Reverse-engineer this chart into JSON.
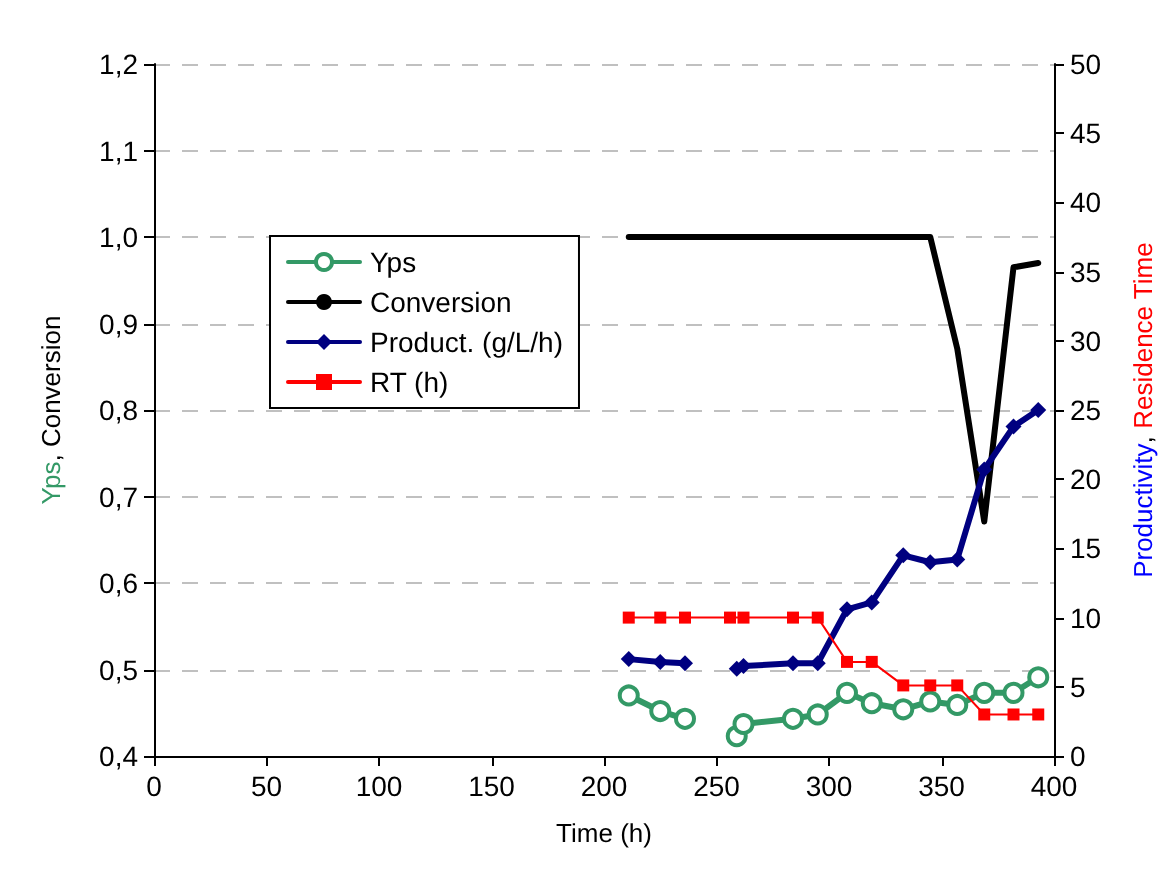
{
  "chart_data": {
    "type": "line",
    "xlabel": "Time (h)",
    "ylabel": "Yps, Conversion",
    "y2label": "Productivity, Residence Time",
    "xlim": [
      0,
      400
    ],
    "xticks": [
      0,
      50,
      100,
      150,
      200,
      250,
      300,
      350,
      400
    ],
    "ylim": [
      0.4,
      1.2
    ],
    "yticks": [
      {
        "value": 0.4,
        "label": "0,4"
      },
      {
        "value": 0.5,
        "label": "0,5"
      },
      {
        "value": 0.6,
        "label": "0,6"
      },
      {
        "value": 0.7,
        "label": "0,7"
      },
      {
        "value": 0.8,
        "label": "0,8"
      },
      {
        "value": 0.9,
        "label": "0,9"
      },
      {
        "value": 1.0,
        "label": "1,0"
      },
      {
        "value": 1.1,
        "label": "1,1"
      },
      {
        "value": 1.2,
        "label": "1,2"
      }
    ],
    "y2lim": [
      0,
      50
    ],
    "y2ticks": [
      0,
      5,
      10,
      15,
      20,
      25,
      30,
      35,
      40,
      45,
      50
    ],
    "grid": "y",
    "legend": "top left",
    "series": [
      {
        "name": "Yps",
        "color": "#339966",
        "marker": "circle",
        "x": [
          211,
          225,
          236,
          247,
          259,
          262,
          284,
          295,
          308,
          319,
          333,
          345,
          357,
          369,
          382,
          393
        ],
        "values": [
          0.47,
          0.452,
          0.443,
          null,
          0.423,
          0.437,
          0.443,
          0.448,
          0.473,
          0.461,
          0.454,
          0.463,
          0.459,
          0.473,
          0.473,
          0.491
        ]
      },
      {
        "name": "Conversion",
        "color": "#000000",
        "marker": "none",
        "x": [
          211,
          225,
          236,
          259,
          262,
          284,
          295,
          308,
          319,
          333,
          345,
          357,
          369,
          382,
          393
        ],
        "values": [
          1.0,
          1.0,
          1.0,
          1.0,
          1.0,
          1.0,
          1.0,
          1.0,
          1.0,
          1.0,
          1.0,
          0.871,
          0.671,
          0.965,
          0.97
        ]
      },
      {
        "name": "Product. (g/L/h)",
        "color": "#000080",
        "marker": "diamond",
        "axis": "y2",
        "x": [
          211,
          225,
          236,
          247,
          259,
          262,
          284,
          295,
          308,
          319,
          333,
          345,
          357,
          369,
          382,
          393
        ],
        "values": [
          7.0,
          6.8,
          6.7,
          null,
          6.3,
          6.5,
          6.7,
          6.7,
          10.6,
          11.1,
          14.5,
          14.0,
          14.2,
          20.7,
          23.8,
          25.0
        ]
      },
      {
        "name": "RT (h)",
        "color": "#ff0000",
        "marker": "square",
        "axis": "y2",
        "x": [
          211,
          225,
          236,
          256,
          262,
          284,
          295,
          308,
          319,
          333,
          345,
          357,
          369,
          382,
          393
        ],
        "values": [
          10,
          10,
          10,
          10,
          10,
          10,
          10,
          6.8,
          6.8,
          5.1,
          5.1,
          5.1,
          3,
          3,
          3
        ]
      }
    ]
  }
}
